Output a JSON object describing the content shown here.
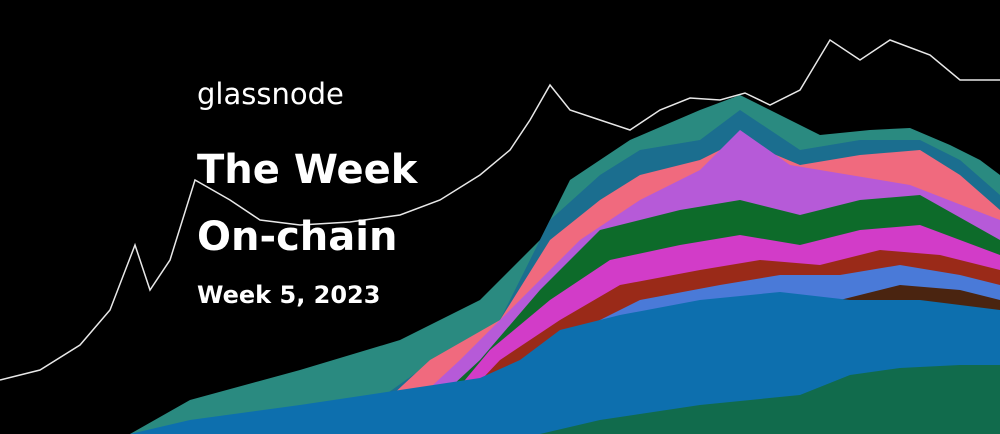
{
  "header": {
    "brand": "glassnode",
    "title_line_1": "The Week",
    "title_line_2": "On-chain",
    "subtitle": "Week 5, 2023"
  }
}
